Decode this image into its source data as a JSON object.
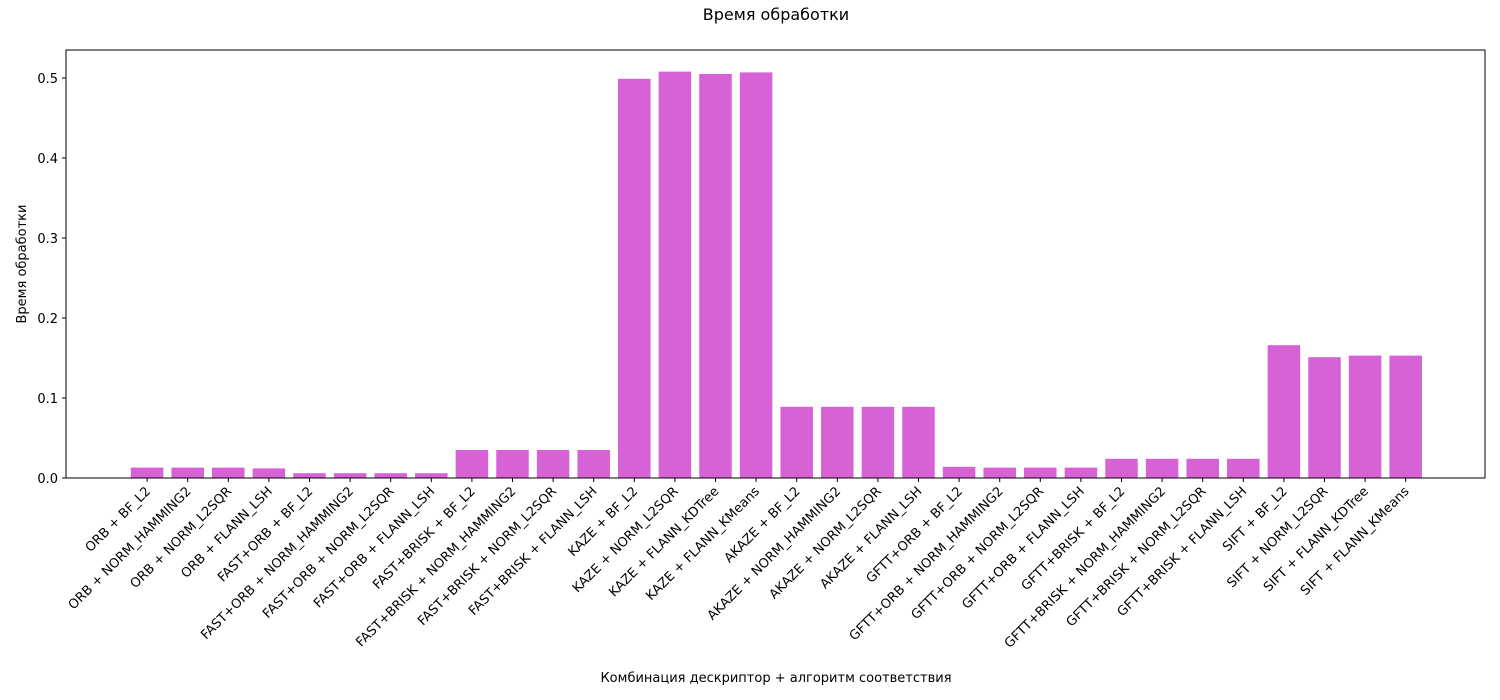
{
  "chart_data": {
    "type": "bar",
    "title": "Время обработки",
    "xlabel": "Комбинация дескриптор + алгоритм соответствия",
    "ylabel": "Время обработки",
    "ylim": [
      0,
      0.535
    ],
    "yticks": [
      "0.0",
      "0.1",
      "0.2",
      "0.3",
      "0.4",
      "0.5"
    ],
    "bar_color": "#d662d6",
    "grid": false,
    "categories": [
      "ORB + BF_L2",
      "ORB + NORM_HAMMING2",
      "ORB + NORM_L2SQR",
      "ORB + FLANN_LSH",
      "FAST+ORB + BF_L2",
      "FAST+ORB + NORM_HAMMING2",
      "FAST+ORB + NORM_L2SQR",
      "FAST+ORB + FLANN_LSH",
      "FAST+BRISK + BF_L2",
      "FAST+BRISK + NORM_HAMMING2",
      "FAST+BRISK + NORM_L2SQR",
      "FAST+BRISK + FLANN_LSH",
      "KAZE + BF_L2",
      "KAZE + NORM_L2SQR",
      "KAZE + FLANN_KDTree",
      "KAZE + FLANN_KMeans",
      "AKAZE + BF_L2",
      "AKAZE + NORM_HAMMING2",
      "AKAZE + NORM_L2SQR",
      "AKAZE + FLANN_LSH",
      "GFTT+ORB + BF_L2",
      "GFTT+ORB + NORM_HAMMING2",
      "GFTT+ORB + NORM_L2SQR",
      "GFTT+ORB + FLANN_LSH",
      "GFTT+BRISK + BF_L2",
      "GFTT+BRISK + NORM_HAMMING2",
      "GFTT+BRISK + NORM_L2SQR",
      "GFTT+BRISK + FLANN_LSH",
      "SIFT + BF_L2",
      "SIFT + NORM_L2SQR",
      "SIFT + FLANN_KDTree",
      "SIFT + FLANN_KMeans"
    ],
    "values": [
      0.013,
      0.013,
      0.013,
      0.012,
      0.006,
      0.006,
      0.006,
      0.006,
      0.035,
      0.035,
      0.035,
      0.035,
      0.499,
      0.508,
      0.505,
      0.507,
      0.089,
      0.089,
      0.089,
      0.089,
      0.014,
      0.013,
      0.013,
      0.013,
      0.024,
      0.024,
      0.024,
      0.024,
      0.166,
      0.151,
      0.153,
      0.153
    ]
  }
}
